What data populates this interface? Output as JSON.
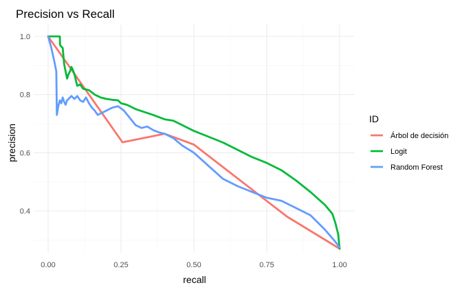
{
  "chart_data": {
    "type": "line",
    "title": "Precision vs Recall",
    "xlabel": "recall",
    "ylabel": "precision",
    "xlim": [
      0,
      1
    ],
    "ylim": [
      0.27,
      1.0
    ],
    "x_ticks": [
      0.0,
      0.25,
      0.5,
      0.75,
      1.0
    ],
    "x_tick_labels": [
      "0.00",
      "0.25",
      "0.50",
      "0.75",
      "1.00"
    ],
    "y_ticks": [
      0.4,
      0.6,
      0.8,
      1.0
    ],
    "y_tick_labels": [
      "0.4",
      "0.6",
      "0.8",
      "1.0"
    ],
    "grid": true,
    "legend": {
      "title": "ID",
      "position": "right"
    },
    "series": [
      {
        "name": "Árbol de decisión",
        "color": "#F8766D",
        "points": [
          [
            0.0,
            1.0
          ],
          [
            0.255,
            0.636
          ],
          [
            0.4,
            0.665
          ],
          [
            0.5,
            0.628
          ],
          [
            0.82,
            0.38
          ],
          [
            1.0,
            0.27
          ]
        ]
      },
      {
        "name": "Logit",
        "color": "#00BA38",
        "points": [
          [
            0.0,
            1.0
          ],
          [
            0.04,
            1.0
          ],
          [
            0.041,
            0.97
          ],
          [
            0.05,
            0.96
          ],
          [
            0.055,
            0.905
          ],
          [
            0.06,
            0.88
          ],
          [
            0.065,
            0.855
          ],
          [
            0.07,
            0.87
          ],
          [
            0.075,
            0.88
          ],
          [
            0.08,
            0.895
          ],
          [
            0.085,
            0.885
          ],
          [
            0.09,
            0.87
          ],
          [
            0.1,
            0.83
          ],
          [
            0.11,
            0.835
          ],
          [
            0.12,
            0.82
          ],
          [
            0.14,
            0.815
          ],
          [
            0.16,
            0.8
          ],
          [
            0.18,
            0.79
          ],
          [
            0.2,
            0.785
          ],
          [
            0.22,
            0.782
          ],
          [
            0.24,
            0.78
          ],
          [
            0.25,
            0.77
          ],
          [
            0.27,
            0.765
          ],
          [
            0.3,
            0.75
          ],
          [
            0.33,
            0.74
          ],
          [
            0.36,
            0.73
          ],
          [
            0.4,
            0.715
          ],
          [
            0.43,
            0.71
          ],
          [
            0.45,
            0.7
          ],
          [
            0.5,
            0.675
          ],
          [
            0.55,
            0.655
          ],
          [
            0.6,
            0.635
          ],
          [
            0.65,
            0.61
          ],
          [
            0.7,
            0.585
          ],
          [
            0.75,
            0.565
          ],
          [
            0.8,
            0.54
          ],
          [
            0.85,
            0.505
          ],
          [
            0.9,
            0.465
          ],
          [
            0.95,
            0.42
          ],
          [
            0.975,
            0.39
          ],
          [
            0.985,
            0.36
          ],
          [
            0.995,
            0.32
          ],
          [
            1.0,
            0.27
          ]
        ]
      },
      {
        "name": "Random Forest",
        "color": "#619CFF",
        "points": [
          [
            0.0,
            1.0
          ],
          [
            0.01,
            0.965
          ],
          [
            0.02,
            0.92
          ],
          [
            0.028,
            0.88
          ],
          [
            0.03,
            0.73
          ],
          [
            0.035,
            0.76
          ],
          [
            0.04,
            0.78
          ],
          [
            0.045,
            0.77
          ],
          [
            0.05,
            0.79
          ],
          [
            0.055,
            0.775
          ],
          [
            0.06,
            0.765
          ],
          [
            0.065,
            0.78
          ],
          [
            0.07,
            0.785
          ],
          [
            0.08,
            0.795
          ],
          [
            0.09,
            0.785
          ],
          [
            0.1,
            0.795
          ],
          [
            0.11,
            0.78
          ],
          [
            0.12,
            0.775
          ],
          [
            0.13,
            0.79
          ],
          [
            0.14,
            0.77
          ],
          [
            0.15,
            0.755
          ],
          [
            0.16,
            0.745
          ],
          [
            0.17,
            0.73
          ],
          [
            0.18,
            0.735
          ],
          [
            0.2,
            0.745
          ],
          [
            0.22,
            0.755
          ],
          [
            0.24,
            0.76
          ],
          [
            0.26,
            0.745
          ],
          [
            0.28,
            0.72
          ],
          [
            0.3,
            0.695
          ],
          [
            0.32,
            0.685
          ],
          [
            0.34,
            0.69
          ],
          [
            0.36,
            0.678
          ],
          [
            0.38,
            0.67
          ],
          [
            0.4,
            0.665
          ],
          [
            0.43,
            0.65
          ],
          [
            0.46,
            0.625
          ],
          [
            0.5,
            0.6
          ],
          [
            0.55,
            0.555
          ],
          [
            0.6,
            0.51
          ],
          [
            0.65,
            0.485
          ],
          [
            0.7,
            0.465
          ],
          [
            0.75,
            0.445
          ],
          [
            0.8,
            0.435
          ],
          [
            0.85,
            0.41
          ],
          [
            0.9,
            0.385
          ],
          [
            0.95,
            0.335
          ],
          [
            0.98,
            0.3
          ],
          [
            1.0,
            0.275
          ]
        ]
      }
    ]
  }
}
